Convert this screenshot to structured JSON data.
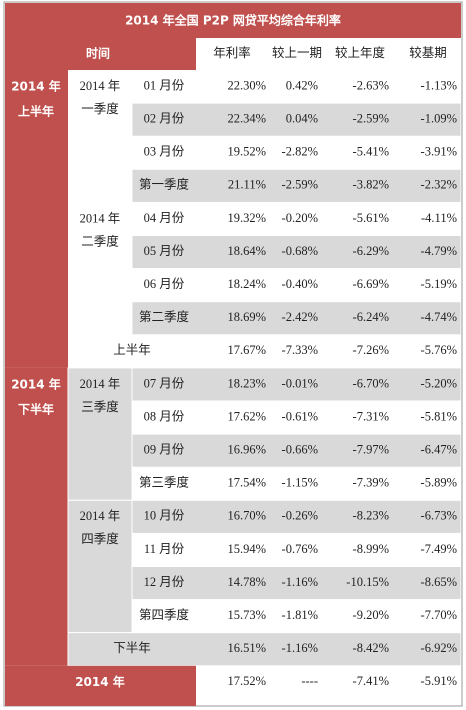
{
  "title": "2014 年全国 P2P 网贷平均综合年利率",
  "header": {
    "time": "时间",
    "columns": [
      "年利率",
      "较上一期",
      "较上年度",
      "较基期"
    ]
  },
  "halves": [
    {
      "label_lines": [
        "2014 年",
        "上半年"
      ],
      "quarters": [
        {
          "label_lines": [
            "2014 年",
            "一季度"
          ],
          "months": [
            {
              "name": "01 月份",
              "values": [
                "22.30%",
                "0.42%",
                "-2.63%",
                "-1.13%"
              ]
            },
            {
              "name": "02 月份",
              "values": [
                "22.34%",
                "0.04%",
                "-2.59%",
                "-1.09%"
              ]
            },
            {
              "name": "03 月份",
              "values": [
                "19.52%",
                "-2.82%",
                "-5.41%",
                "-3.91%"
              ]
            }
          ],
          "summary": {
            "name": "第一季度",
            "values": [
              "21.11%",
              "-2.59%",
              "-3.82%",
              "-2.32%"
            ]
          }
        },
        {
          "label_lines": [
            "2014 年",
            "二季度"
          ],
          "months": [
            {
              "name": "04 月份",
              "values": [
                "19.32%",
                "-0.20%",
                "-5.61%",
                "-4.11%"
              ]
            },
            {
              "name": "05 月份",
              "values": [
                "18.64%",
                "-0.68%",
                "-6.29%",
                "-4.79%"
              ]
            },
            {
              "name": "06 月份",
              "values": [
                "18.24%",
                "-0.40%",
                "-6.69%",
                "-5.19%"
              ]
            }
          ],
          "summary": {
            "name": "第二季度",
            "values": [
              "18.69%",
              "-2.42%",
              "-6.24%",
              "-4.74%"
            ]
          }
        }
      ],
      "summary": {
        "name": "上半年",
        "values": [
          "17.67%",
          "-7.33%",
          "-7.26%",
          "-5.76%"
        ]
      }
    },
    {
      "label_lines": [
        "2014 年",
        "下半年"
      ],
      "quarters": [
        {
          "label_lines": [
            "2014 年",
            "三季度"
          ],
          "months": [
            {
              "name": "07 月份",
              "values": [
                "18.23%",
                "-0.01%",
                "-6.70%",
                "-5.20%"
              ]
            },
            {
              "name": "08 月份",
              "values": [
                "17.62%",
                "-0.61%",
                "-7.31%",
                "-5.81%"
              ]
            },
            {
              "name": "09 月份",
              "values": [
                "16.96%",
                "-0.66%",
                "-7.97%",
                "-6.47%"
              ]
            }
          ],
          "summary": {
            "name": "第三季度",
            "values": [
              "17.54%",
              "-1.15%",
              "-7.39%",
              "-5.89%"
            ]
          }
        },
        {
          "label_lines": [
            "2014 年",
            "四季度"
          ],
          "months": [
            {
              "name": "10 月份",
              "values": [
                "16.70%",
                "-0.26%",
                "-8.23%",
                "-6.73%"
              ]
            },
            {
              "name": "11 月份",
              "values": [
                "15.94%",
                "-0.76%",
                "-8.99%",
                "-7.49%"
              ]
            },
            {
              "name": "12 月份",
              "values": [
                "14.78%",
                "-1.16%",
                "-10.15%",
                "-8.65%"
              ]
            }
          ],
          "summary": {
            "name": "第四季度",
            "values": [
              "15.73%",
              "-1.81%",
              "-9.20%",
              "-7.70%"
            ]
          }
        }
      ],
      "summary": {
        "name": "下半年",
        "values": [
          "16.51%",
          "-1.16%",
          "-8.42%",
          "-6.92%"
        ]
      }
    }
  ],
  "total": {
    "name": "2014 年",
    "values": [
      "17.52%",
      "----",
      "-7.41%",
      "-5.91%"
    ]
  }
}
